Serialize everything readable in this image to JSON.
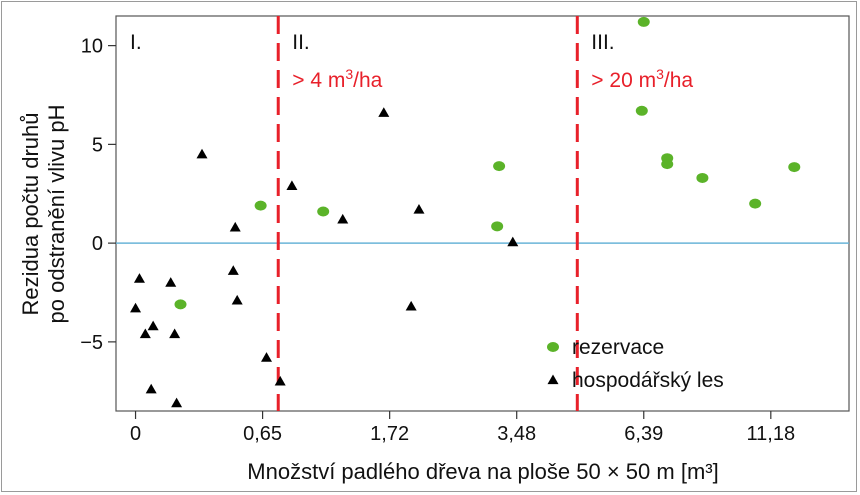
{
  "chart_data": {
    "type": "scatter",
    "xlabel": "Množství padlého dřeva na ploše 50 × 50 m [m³]",
    "ylabel_line1": "Rezidua počtu druhů",
    "ylabel_line2": "po odstranění vlivu pH",
    "ylim": [
      -8.5,
      11.5
    ],
    "y_ticks": [
      {
        "value": 10,
        "label": "10"
      },
      {
        "value": 5,
        "label": "5"
      },
      {
        "value": 0,
        "label": "0"
      },
      {
        "value": -5,
        "label": "−5"
      }
    ],
    "x_ticks": [
      {
        "pos": 0,
        "label": "0"
      },
      {
        "pos": 0.65,
        "label": "0,65"
      },
      {
        "pos": 1.3,
        "label": "1,72"
      },
      {
        "pos": 1.95,
        "label": "3,48"
      },
      {
        "pos": 2.6,
        "label": "6,39"
      },
      {
        "pos": 3.25,
        "label": "11,18"
      }
    ],
    "xlim": [
      -0.1,
      3.65
    ],
    "reference_line_y": 0,
    "zones": [
      {
        "label": "I."
      },
      {
        "label": "II.",
        "threshold_base": "> 4 m",
        "threshold_exp": "3",
        "threshold_unit": "/ha",
        "boundary_pos": 0.73
      },
      {
        "label": "III.",
        "threshold_base": "> 20 m",
        "threshold_exp": "3",
        "threshold_unit": "/ha",
        "boundary_pos": 2.26
      }
    ],
    "series": [
      {
        "name": "rezervace",
        "marker": "circle",
        "color": "#5bb329",
        "points": [
          [
            0.23,
            -3.1
          ],
          [
            0.64,
            1.9
          ],
          [
            0.96,
            1.6
          ],
          [
            1.86,
            3.9
          ],
          [
            1.85,
            0.85
          ],
          [
            2.6,
            11.2
          ],
          [
            2.59,
            6.7
          ],
          [
            2.72,
            4.3
          ],
          [
            2.72,
            4.0
          ],
          [
            2.9,
            3.3
          ],
          [
            3.17,
            2.0
          ],
          [
            3.37,
            3.85
          ]
        ]
      },
      {
        "name": "hospodářský les",
        "marker": "triangle",
        "color": "#000000",
        "points": [
          [
            0.0,
            -3.3
          ],
          [
            0.02,
            -1.8
          ],
          [
            0.05,
            -4.6
          ],
          [
            0.09,
            -4.2
          ],
          [
            0.08,
            -7.4
          ],
          [
            0.18,
            -2.0
          ],
          [
            0.2,
            -4.6
          ],
          [
            0.21,
            -8.1
          ],
          [
            0.34,
            4.5
          ],
          [
            0.5,
            -1.4
          ],
          [
            0.51,
            0.8
          ],
          [
            0.52,
            -2.9
          ],
          [
            0.67,
            -5.8
          ],
          [
            0.74,
            -7.0
          ],
          [
            0.8,
            2.9
          ],
          [
            1.06,
            1.2
          ],
          [
            1.27,
            6.6
          ],
          [
            1.41,
            -3.2
          ],
          [
            1.45,
            1.7
          ],
          [
            1.93,
            0.05
          ]
        ]
      }
    ]
  }
}
